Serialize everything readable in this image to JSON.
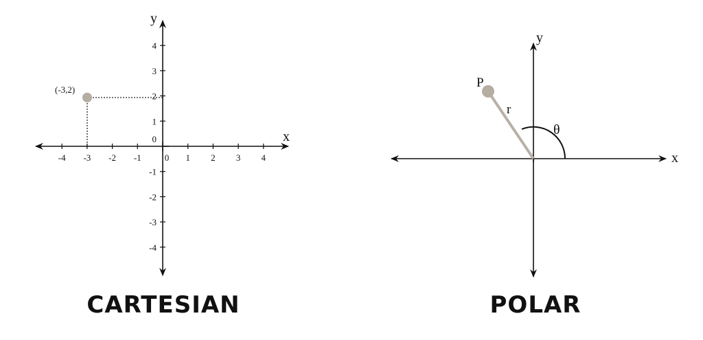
{
  "cartesian": {
    "axis_x_label": "x",
    "axis_y_label": "y",
    "x_ticks": [
      "-4",
      "-3",
      "-2",
      "-1",
      "0",
      "1",
      "2",
      "3",
      "4"
    ],
    "y_ticks_pos": [
      "4",
      "3",
      "2",
      "1",
      "0"
    ],
    "y_ticks_neg": [
      "-1",
      "-2",
      "-3",
      "-4"
    ],
    "point_label": "(-3,2)",
    "point": {
      "x": -3,
      "y": 2
    },
    "point_color": "#b5aca2",
    "caption": "CARTESIAN"
  },
  "polar": {
    "axis_x_label": "x",
    "axis_y_label": "y",
    "point_label": "P",
    "radius_label": "r",
    "angle_label": "θ",
    "point_color": "#b5aca2",
    "radius_color": "#b9b0a6",
    "caption": "POLAR"
  }
}
